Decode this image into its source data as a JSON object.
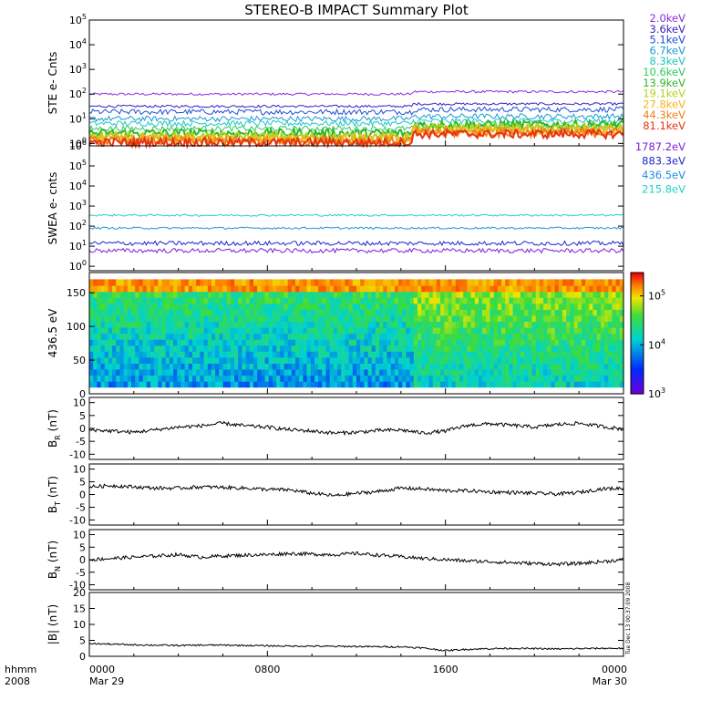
{
  "title": "STEREO-B IMPACT Summary Plot",
  "stamp": "Tue Dec 13 00:37:09 2008",
  "footer": {
    "left_top": "hhmm",
    "left_bottom": "2008",
    "x_ticks": [
      "0000",
      "0800",
      "1600",
      "0000"
    ],
    "x_dates": [
      "Mar 29",
      "",
      "",
      "Mar 30"
    ]
  },
  "chart_data": [
    {
      "type": "line",
      "panel": "ste",
      "ylabel": "STE e- Cnts",
      "yscale": "log",
      "ylim": [
        0.8,
        100000
      ],
      "yticks": [
        "10^0",
        "10^1",
        "10^2",
        "10^3",
        "10^4",
        "10^5"
      ],
      "xlim_hours": [
        0,
        24
      ],
      "series": [
        {
          "name": "2.0keV",
          "color": "#8a2be2",
          "level": 100
        },
        {
          "name": "3.6keV",
          "color": "#3a1dbf",
          "level": 32
        },
        {
          "name": "5.1keV",
          "color": "#1d4fd6",
          "level": 19
        },
        {
          "name": "6.7keV",
          "color": "#1c9ad8",
          "level": 10
        },
        {
          "name": "8.3keV",
          "color": "#18c9c0",
          "level": 6.5
        },
        {
          "name": "10.6keV",
          "color": "#2fc95e",
          "level": 4
        },
        {
          "name": "13.9keV",
          "color": "#2bb82a",
          "level": 2.6
        },
        {
          "name": "19.1keV",
          "color": "#b5d21c",
          "level": 1.9
        },
        {
          "name": "27.8keV",
          "color": "#f0b71c",
          "level": 1.5
        },
        {
          "name": "44.3keV",
          "color": "#f27f18",
          "level": 1.25
        },
        {
          "name": "81.1keV",
          "color": "#e63312",
          "level": 1.1
        }
      ]
    },
    {
      "type": "line",
      "panel": "swea",
      "ylabel": "SWEA e- cnts",
      "yscale": "log",
      "ylim": [
        0.6,
        1000000
      ],
      "yticks": [
        "10^0",
        "10^1",
        "10^2",
        "10^3",
        "10^4",
        "10^5",
        "10^6"
      ],
      "xlim_hours": [
        0,
        24
      ],
      "series": [
        {
          "name": "1787.2eV",
          "color": "#7a1fd6",
          "level": 6
        },
        {
          "name": "883.3eV",
          "color": "#1f28c8",
          "level": 14
        },
        {
          "name": "436.5eV",
          "color": "#1f8fe0",
          "level": 80
        },
        {
          "name": "215.8eV",
          "color": "#24d2c6",
          "level": 350
        }
      ]
    },
    {
      "type": "heatmap",
      "panel": "pad",
      "ylabel": "436.5 eV",
      "ylim": [
        0,
        180
      ],
      "yticks": [
        0,
        50,
        100,
        150
      ],
      "colorbar": {
        "scale": "log",
        "range": [
          1000,
          300000
        ],
        "ticks": [
          "10^3",
          "10^4",
          "10^5"
        ]
      },
      "xlim_hours": [
        0,
        24
      ]
    },
    {
      "type": "line",
      "panel": "br",
      "ylabel": "B_R (nT)",
      "ylim": [
        -12,
        12
      ],
      "yticks": [
        -10,
        -5,
        0,
        5,
        10
      ],
      "color": "#000000",
      "x_hours": [
        0,
        1,
        2,
        3,
        4,
        5,
        6,
        7,
        8,
        9,
        10,
        11,
        12,
        13,
        14,
        15,
        16,
        17,
        18,
        19,
        20,
        21,
        22,
        23,
        24
      ],
      "values": [
        -0.5,
        -1,
        -1.5,
        -0.5,
        0.5,
        1,
        2,
        1,
        0.5,
        -0.5,
        -1,
        -1.8,
        -1.5,
        -0.8,
        -0.6,
        -1.8,
        -1,
        1.2,
        1.8,
        1.2,
        0.5,
        1.5,
        2,
        0.8,
        -0.3
      ]
    },
    {
      "type": "line",
      "panel": "bt",
      "ylabel": "B_T (nT)",
      "ylim": [
        -12,
        12
      ],
      "yticks": [
        -10,
        -5,
        0,
        5,
        10
      ],
      "color": "#000000",
      "x_hours": [
        0,
        1,
        2,
        3,
        4,
        5,
        6,
        7,
        8,
        9,
        10,
        11,
        12,
        13,
        14,
        15,
        16,
        17,
        18,
        19,
        20,
        21,
        22,
        23,
        24
      ],
      "values": [
        3,
        3.5,
        3,
        2.5,
        2.5,
        3,
        2.8,
        2.5,
        2,
        1.8,
        0.5,
        -0.5,
        0.5,
        1.2,
        2.5,
        2.2,
        1.5,
        1.5,
        1,
        0.8,
        0.5,
        0.2,
        0.8,
        2.2,
        2.5
      ]
    },
    {
      "type": "line",
      "panel": "bn",
      "ylabel": "B_N (nT)",
      "ylim": [
        -12,
        12
      ],
      "yticks": [
        -10,
        -5,
        0,
        5,
        10
      ],
      "color": "#000000",
      "x_hours": [
        0,
        1,
        2,
        3,
        4,
        5,
        6,
        7,
        8,
        9,
        10,
        11,
        12,
        13,
        14,
        15,
        16,
        17,
        18,
        19,
        20,
        21,
        22,
        23,
        24
      ],
      "values": [
        0,
        0.5,
        1,
        1.5,
        2,
        1,
        1.5,
        1.8,
        2,
        2.5,
        2.2,
        2,
        2.5,
        1.8,
        1.2,
        0.5,
        0,
        -0.5,
        -0.8,
        -1.2,
        -1.5,
        -1.8,
        -1.5,
        -0.8,
        0
      ]
    },
    {
      "type": "line",
      "panel": "bmag",
      "ylabel": "|B| (nT)",
      "ylim": [
        0,
        20
      ],
      "yticks": [
        0,
        5,
        10,
        15,
        20
      ],
      "color": "#000000",
      "x_hours": [
        0,
        1,
        2,
        3,
        4,
        5,
        6,
        7,
        8,
        9,
        10,
        11,
        12,
        13,
        14,
        15,
        16,
        17,
        18,
        19,
        20,
        21,
        22,
        23,
        24
      ],
      "values": [
        4,
        3.8,
        3.6,
        3.5,
        3.4,
        3.5,
        3.5,
        3.4,
        3.3,
        3.2,
        3.2,
        3.1,
        3.1,
        3,
        3,
        2.6,
        1.8,
        2.2,
        2.4,
        2.5,
        2.4,
        2.3,
        2.4,
        2.5,
        2.5
      ]
    }
  ]
}
